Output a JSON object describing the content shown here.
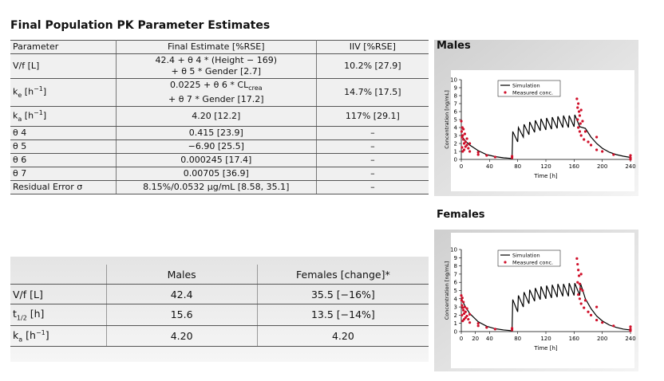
{
  "title": "Final Population PK Parameter Estimates",
  "table1": {
    "header": [
      "Parameter",
      "Final Estimate [%RSE]",
      "IIV [%RSE]"
    ],
    "rows": [
      [
        "V/f [L]",
        {
          "lines": [
            "42.4 + θ 4 * (Height − 169)",
            "+ θ 5 * Gender [2.7]"
          ]
        },
        "10.2% [27.9]"
      ],
      [
        [
          {
            "t": "k"
          },
          {
            "t": "e",
            "sub": true
          },
          {
            "t": " [h"
          },
          {
            "t": "−1",
            "sup": true
          },
          {
            "t": "]"
          }
        ],
        {
          "lines": [
            [
              {
                "t": "0.0225 + θ 6 * CL"
              },
              {
                "t": "crea",
                "sub": true
              }
            ],
            "+ θ 7 * Gender [17.2]"
          ]
        },
        "14.7% [17.5]"
      ],
      [
        [
          {
            "t": "k"
          },
          {
            "t": "a",
            "sub": true
          },
          {
            "t": " [h"
          },
          {
            "t": "−1",
            "sup": true
          },
          {
            "t": "]"
          }
        ],
        "4.20 [12.2]",
        "117% [29.1]"
      ],
      [
        "θ 4",
        "0.415 [23.9]",
        "–"
      ],
      [
        "θ 5",
        "−6.90 [25.5]",
        "–"
      ],
      [
        "θ 6",
        "0.000245 [17.4]",
        "–"
      ],
      [
        "θ 7",
        "0.00705 [36.9]",
        "–"
      ],
      [
        "Residual Error σ",
        "8.15%/0.0532 μg/mL [8.58, 35.1]",
        "–"
      ]
    ]
  },
  "table2": {
    "header": [
      "Males",
      "Females [change]*"
    ],
    "rows": [
      [
        "V/f [L]",
        "42.4",
        "35.5 [−16%]"
      ],
      [
        [
          {
            "t": "t"
          },
          {
            "t": "1/2",
            "sub": true
          },
          {
            "t": " [h]"
          }
        ],
        "15.6",
        "13.5 [−14%]"
      ],
      [
        [
          {
            "t": "k"
          },
          {
            "t": "a",
            "sub": true
          },
          {
            "t": " [h"
          },
          {
            "t": "−1",
            "sup": true
          },
          {
            "t": "]"
          }
        ],
        "4.20",
        "4.20"
      ]
    ]
  },
  "chart_data": [
    {
      "type": "line",
      "title": "Males",
      "x_label": "Time [h]",
      "y_label": "Concentration [ng/mL]",
      "xlim": [
        0,
        240
      ],
      "xticks": [
        0,
        40,
        80,
        120,
        160,
        200,
        240
      ],
      "ylim": [
        0,
        10
      ],
      "yticks": [
        0,
        1,
        2,
        3,
        4,
        5,
        6,
        7,
        8,
        9,
        10
      ],
      "legend": "upper center",
      "series": [
        {
          "name": "Simulation",
          "type": "line",
          "color": "#000000",
          "x": [
            0,
            6,
            12,
            24,
            36,
            48,
            60,
            72,
            73,
            80,
            81,
            88,
            89,
            96,
            97,
            104,
            105,
            112,
            113,
            120,
            121,
            128,
            129,
            136,
            137,
            144,
            145,
            152,
            153,
            160,
            161,
            168,
            176,
            184,
            192,
            200,
            210,
            220,
            230,
            240
          ],
          "values": [
            3.0,
            2.3,
            1.8,
            1.1,
            0.6,
            0.35,
            0.2,
            0.12,
            3.5,
            2.2,
            4.0,
            2.8,
            4.4,
            3.1,
            4.7,
            3.4,
            4.9,
            3.6,
            5.1,
            3.7,
            5.2,
            3.8,
            5.3,
            3.9,
            5.4,
            4.0,
            5.5,
            4.0,
            5.5,
            4.1,
            5.6,
            4.1,
            3.9,
            2.8,
            2.0,
            1.4,
            0.9,
            0.6,
            0.4,
            0.25
          ]
        },
        {
          "name": "Measured conc.",
          "type": "scatter",
          "color": "#d0102a",
          "x": [
            0,
            0.5,
            1,
            1,
            1.5,
            2,
            2,
            3,
            3,
            4,
            4,
            5,
            6,
            6,
            8,
            8,
            10,
            12,
            12,
            24,
            24,
            36,
            48,
            72,
            72,
            164,
            165,
            165,
            166,
            166,
            167,
            168,
            168,
            169,
            170,
            170,
            172,
            174,
            176,
            180,
            184,
            192,
            192,
            200,
            216,
            240,
            240,
            240
          ],
          "values": [
            4.8,
            3.5,
            2.8,
            1.5,
            4.0,
            3.0,
            1.0,
            2.5,
            3.8,
            2.0,
            1.2,
            3.2,
            2.2,
            1.6,
            1.8,
            2.6,
            1.4,
            1.0,
            2.0,
            0.9,
            0.6,
            0.5,
            0.3,
            0.2,
            0.4,
            7.6,
            6.5,
            5.0,
            4.0,
            7.0,
            6.0,
            3.5,
            5.5,
            4.5,
            6.2,
            3.0,
            4.8,
            2.5,
            3.5,
            2.2,
            1.8,
            1.2,
            2.8,
            1.0,
            0.6,
            0.2,
            0.5,
            0.0
          ]
        }
      ]
    },
    {
      "type": "line",
      "title": "Females",
      "x_label": "Time [h]",
      "y_label": "Concentration [ng/mL]",
      "xlim": [
        0,
        240
      ],
      "xticks": [
        0,
        20,
        40,
        80,
        120,
        160,
        200,
        240
      ],
      "ylim": [
        0,
        10
      ],
      "yticks": [
        0,
        1,
        2,
        3,
        4,
        5,
        6,
        7,
        8,
        9,
        10
      ],
      "legend": "upper center",
      "series": [
        {
          "name": "Simulation",
          "type": "line",
          "color": "#000000",
          "x": [
            0,
            6,
            12,
            24,
            36,
            48,
            60,
            72,
            73,
            80,
            81,
            88,
            89,
            96,
            97,
            104,
            105,
            112,
            113,
            120,
            121,
            128,
            129,
            136,
            137,
            144,
            145,
            152,
            153,
            160,
            161,
            168,
            169,
            176,
            184,
            192,
            200,
            210,
            220,
            230,
            240
          ],
          "values": [
            4.0,
            3.0,
            2.2,
            1.2,
            0.65,
            0.35,
            0.2,
            0.1,
            3.9,
            2.4,
            4.4,
            3.0,
            4.8,
            3.4,
            5.1,
            3.7,
            5.3,
            3.9,
            5.5,
            4.0,
            5.6,
            4.1,
            5.7,
            4.2,
            5.8,
            4.3,
            5.8,
            4.3,
            5.9,
            4.4,
            5.9,
            4.4,
            5.9,
            4.0,
            2.8,
            1.9,
            1.3,
            0.8,
            0.5,
            0.3,
            0.2
          ]
        },
        {
          "name": "Measured conc.",
          "type": "scatter",
          "color": "#d0102a",
          "x": [
            0,
            0.5,
            1,
            1,
            1.5,
            2,
            2,
            3,
            3,
            4,
            4,
            5,
            6,
            6,
            8,
            8,
            10,
            12,
            12,
            24,
            24,
            36,
            48,
            72,
            72,
            164,
            165,
            165,
            166,
            166,
            167,
            168,
            168,
            169,
            170,
            170,
            172,
            174,
            176,
            180,
            184,
            192,
            192,
            200,
            216,
            240,
            240,
            240
          ],
          "values": [
            4.4,
            3.8,
            3.2,
            2.0,
            4.1,
            2.9,
            1.3,
            2.6,
            3.6,
            2.2,
            1.5,
            3.0,
            2.4,
            1.7,
            1.9,
            2.8,
            1.5,
            1.1,
            2.1,
            1.0,
            0.7,
            0.5,
            0.3,
            0.2,
            0.4,
            8.9,
            8.2,
            6.0,
            4.5,
            7.5,
            6.8,
            4.0,
            5.8,
            5.2,
            7.0,
            3.4,
            5.0,
            2.9,
            3.8,
            2.4,
            2.0,
            1.4,
            3.0,
            1.1,
            0.7,
            0.3,
            0.6,
            0.1
          ]
        }
      ]
    }
  ]
}
